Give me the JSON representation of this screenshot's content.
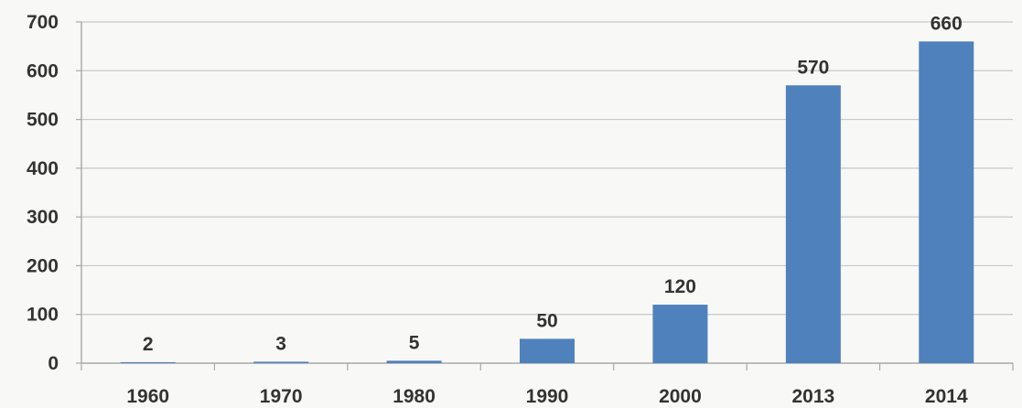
{
  "chart_data": {
    "type": "bar",
    "categories": [
      "1960",
      "1970",
      "1980",
      "1990",
      "2000",
      "2013",
      "2014"
    ],
    "values": [
      2,
      3,
      5,
      50,
      120,
      570,
      660
    ],
    "data_labels": [
      "2",
      "3",
      "5",
      "50",
      "120",
      "570",
      "660"
    ],
    "y_ticks": [
      0,
      100,
      200,
      300,
      400,
      500,
      600,
      700
    ],
    "y_tick_labels": [
      "0",
      "100",
      "200",
      "300",
      "400",
      "500",
      "600",
      "700"
    ],
    "ylim": [
      0,
      700
    ],
    "grid": true,
    "legend": "none",
    "colors": {
      "bar": "#4f81bd",
      "grid": "#c8c8c8",
      "text": "#333333",
      "background": "#f8f8f6"
    }
  }
}
